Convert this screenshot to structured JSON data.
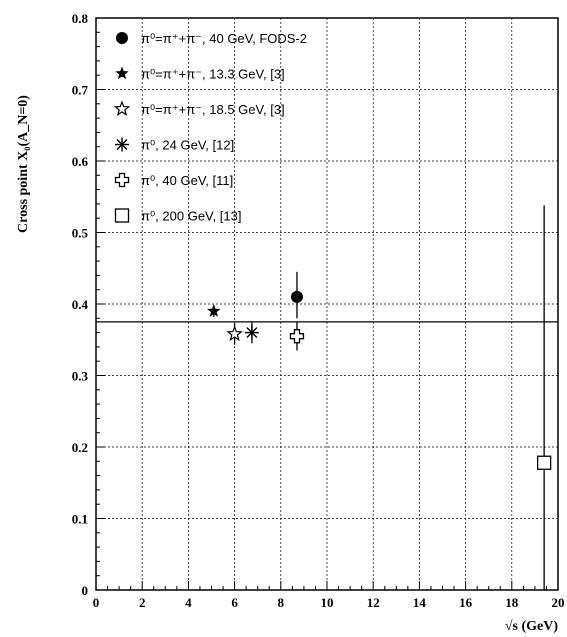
{
  "chart_data": {
    "type": "scatter",
    "xlabel": "√s (GeV)",
    "ylabel": "Cross point X₀(A_N=0)",
    "xlim": [
      0,
      20
    ],
    "ylim": [
      0,
      0.8
    ],
    "x_ticks": [
      "0",
      "2",
      "4",
      "6",
      "8",
      "10",
      "12",
      "14",
      "16",
      "18",
      "20"
    ],
    "y_ticks": [
      "0",
      "0.1",
      "0.2",
      "0.3",
      "0.4",
      "0.5",
      "0.6",
      "0.7",
      "0.8"
    ],
    "grid": true,
    "legend_position": "top-left",
    "reference_line_y": 0.375,
    "series": [
      {
        "name": "π⁰=π⁺+π⁻, 40 GeV, FODS-2",
        "marker": "filled-circle",
        "points": [
          {
            "x": 8.7,
            "y": 0.41,
            "yerr_low": 0.03,
            "yerr_high": 0.035
          }
        ]
      },
      {
        "name": "π⁰=π⁺+π⁻, 13.3 GeV, [3]",
        "marker": "filled-star",
        "points": [
          {
            "x": 5.1,
            "y": 0.39,
            "yerr_low": 0.008,
            "yerr_high": 0.008
          }
        ]
      },
      {
        "name": "π⁰=π⁺+π⁻, 18.5 GeV, [3]",
        "marker": "open-star",
        "points": [
          {
            "x": 6.0,
            "y": 0.358,
            "yerr_low": 0.015,
            "yerr_high": 0.015
          }
        ]
      },
      {
        "name": "π⁰, 24 GeV, [12]",
        "marker": "asterisk",
        "points": [
          {
            "x": 6.75,
            "y": 0.36,
            "yerr_low": 0.015,
            "yerr_high": 0.015
          }
        ]
      },
      {
        "name": "π⁰, 40 GeV, [11]",
        "marker": "open-cross",
        "points": [
          {
            "x": 8.7,
            "y": 0.355,
            "yerr_low": 0.02,
            "yerr_high": 0.02
          }
        ]
      },
      {
        "name": "π⁰, 200 GeV, [13]",
        "marker": "open-square",
        "points": [
          {
            "x": 19.4,
            "y": 0.178,
            "yerr_low": 0.178,
            "yerr_high": 0.36
          }
        ]
      }
    ]
  }
}
